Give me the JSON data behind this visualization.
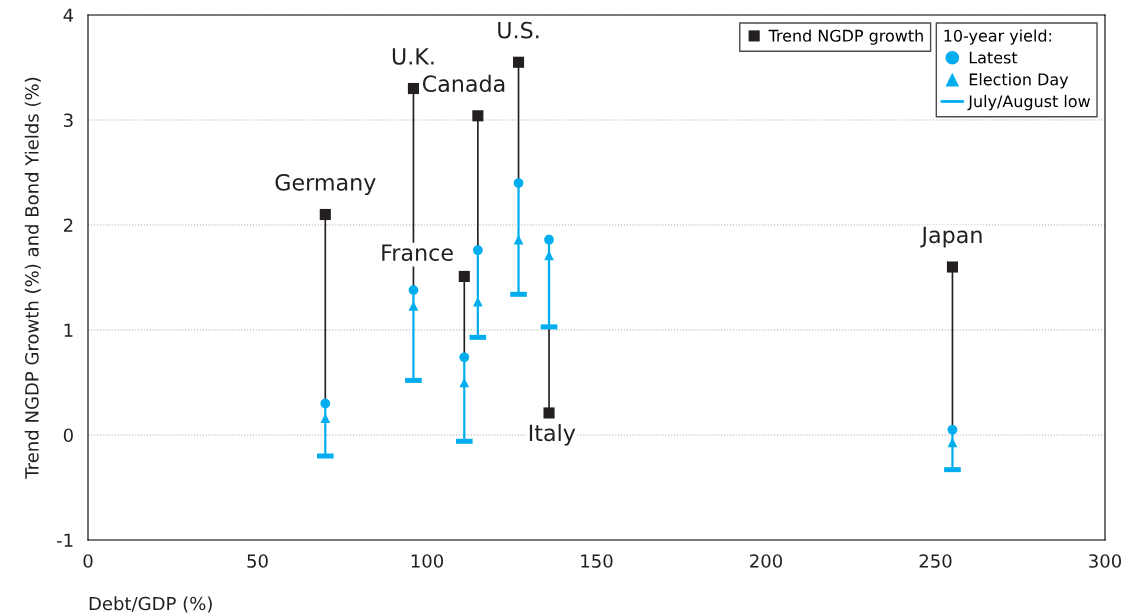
{
  "chart_data": {
    "type": "scatter",
    "xlabel": "Debt/GDP (%)",
    "ylabel": "Trend NGDP Growth (%) and Bond Yields (%)",
    "legend_title": "10-year yield:",
    "xlim": [
      0,
      300
    ],
    "xticks": [
      0,
      50,
      100,
      150,
      200,
      250,
      300
    ],
    "ylim": [
      -1,
      4
    ],
    "yticks": [
      -1,
      0,
      1,
      2,
      3,
      4
    ],
    "grid": "y",
    "legend": "top right",
    "x": [
      70,
      96,
      111,
      115,
      127,
      136,
      255
    ],
    "series": [
      {
        "name": "Trend NGDP growth",
        "color": "#231f20",
        "marker": "square",
        "values": [
          2.1,
          3.3,
          1.51,
          3.04,
          3.55,
          0.21,
          1.6
        ]
      },
      {
        "name": "Latest",
        "color": "#00aeef",
        "marker": "circle",
        "values": [
          0.3,
          1.38,
          0.74,
          1.76,
          2.4,
          1.86,
          0.05
        ],
        "errors": [
          [
            -0.2,
            0.3
          ],
          [
            0.52,
            1.38
          ],
          [
            -0.06,
            0.74
          ],
          [
            0.93,
            1.76
          ],
          [
            1.34,
            2.4
          ],
          [
            1.03,
            1.86
          ],
          [
            -0.33,
            0.05
          ]
        ]
      },
      {
        "name": "Election Day",
        "color": "#00aeef",
        "marker": "triangle",
        "values": [
          0.16,
          1.23,
          0.5,
          1.27,
          1.86,
          1.71,
          -0.07
        ]
      },
      {
        "name": "July/August low",
        "color": "#00aeef",
        "values": [
          -0.2,
          0.52,
          -0.06,
          0.93,
          1.34,
          1.03,
          -0.33
        ]
      }
    ],
    "annotations": [
      {
        "text": "Germany",
        "x": 70,
        "y": 2.1
      },
      {
        "text": "U.K.",
        "x": 96,
        "y": 3.3
      },
      {
        "text": "France",
        "x": 111,
        "y": 1.51
      },
      {
        "text": "Canada",
        "x": 115,
        "y": 3.04
      },
      {
        "text": "U.S.",
        "x": 127,
        "y": 3.55
      },
      {
        "text": "Italy",
        "x": 136,
        "y": 0.21
      },
      {
        "text": "Japan",
        "x": 255,
        "y": 1.6
      }
    ]
  }
}
